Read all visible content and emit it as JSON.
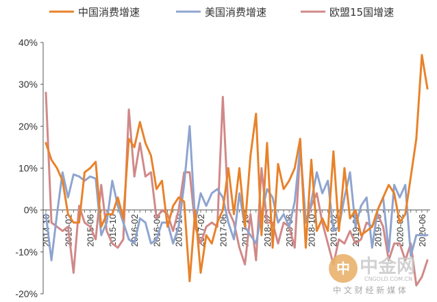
{
  "chart_data": {
    "type": "line",
    "title": "",
    "xlabel": "",
    "ylabel": "",
    "ylim": [
      -20,
      40
    ],
    "y_ticks": [
      "40%",
      "30%",
      "20%",
      "10%",
      "0%",
      "-10%",
      "-20%"
    ],
    "y_tick_values": [
      40,
      30,
      20,
      10,
      0,
      -10,
      -20
    ],
    "x": [
      "2014-10",
      "2014-11",
      "2014-12",
      "2015-01",
      "2015-02",
      "2015-03",
      "2015-04",
      "2015-05",
      "2015-06",
      "2015-07",
      "2015-08",
      "2015-09",
      "2015-10",
      "2015-11",
      "2015-12",
      "2016-01",
      "2016-02",
      "2016-03",
      "2016-04",
      "2016-05",
      "2016-06",
      "2016-07",
      "2016-08",
      "2016-09",
      "2016-10",
      "2016-11",
      "2016-12",
      "2017-01",
      "2017-02",
      "2017-03",
      "2017-04",
      "2017-05",
      "2017-06",
      "2017-07",
      "2017-08",
      "2017-09",
      "2017-10",
      "2017-11",
      "2017-12",
      "2018-01",
      "2018-02",
      "2018-03",
      "2018-04",
      "2018-05",
      "2018-06",
      "2018-07",
      "2018-08",
      "2018-09",
      "2018-10",
      "2018-11",
      "2018-12",
      "2019-01",
      "2019-02",
      "2019-03",
      "2019-04",
      "2019-05",
      "2019-06",
      "2019-07",
      "2019-08",
      "2019-09",
      "2019-10",
      "2019-11",
      "2019-12",
      "2020-01",
      "2020-02",
      "2020-03",
      "2020-04",
      "2020-05",
      "2020-06",
      "2020-07"
    ],
    "x_tick_labels": [
      "2014-10",
      "2015-02",
      "2015-06",
      "2015-10",
      "2016-02",
      "2016-06",
      "2016-10",
      "2017-02",
      "2017-06",
      "2017-10",
      "2018-02",
      "2018-06",
      "2018-10",
      "2019-02",
      "2019-06",
      "2019-10",
      "2020-02",
      "2020-06"
    ],
    "x_tick_indices": [
      0,
      4,
      8,
      12,
      16,
      20,
      24,
      28,
      32,
      36,
      40,
      44,
      48,
      52,
      56,
      60,
      64,
      68
    ],
    "legend_position": "top",
    "grid": false,
    "series": [
      {
        "name": "中国消费增速",
        "color": "#e8822a",
        "values": [
          16,
          12,
          10,
          7,
          -1,
          -3,
          -3,
          9,
          10,
          11.5,
          -4,
          -1,
          -1,
          3,
          -2,
          17,
          15,
          21,
          16,
          13,
          5,
          7,
          -4,
          1,
          3,
          2,
          -17,
          0,
          -15,
          -6,
          -8,
          -3,
          0,
          10,
          -1,
          10,
          -4,
          13,
          23,
          -6,
          16,
          -9,
          11,
          5,
          7,
          10,
          17,
          -9,
          12,
          -5,
          -2,
          -5,
          14,
          -5,
          10,
          -2,
          0,
          -6,
          -5,
          -4,
          0,
          3,
          6,
          4,
          -3,
          -1,
          8,
          17,
          37,
          29
        ]
      },
      {
        "name": "美国消费增速",
        "color": "#8ea4cf",
        "values": [
          -1,
          -12,
          -1,
          9,
          3,
          8.5,
          8,
          7,
          8,
          7.5,
          -6,
          -3,
          7,
          1,
          -3,
          -7,
          -8,
          -2,
          -3,
          -8,
          -7,
          -3,
          -3,
          -8,
          -4,
          6,
          20,
          -3,
          4,
          1,
          4,
          5,
          3,
          -3,
          -7,
          4,
          -4,
          -6,
          -8,
          -1,
          5,
          3,
          -3,
          -1,
          -4,
          2,
          15,
          -3,
          2,
          9,
          4,
          7,
          -5,
          -4,
          3,
          9,
          -4,
          1,
          3,
          -9,
          0,
          3,
          -10,
          6,
          3,
          6,
          -11,
          -6,
          -6,
          -6
        ]
      },
      {
        "name": "欧盟15国增速",
        "color": "#d18888",
        "values": [
          28,
          -3,
          -4,
          -5,
          -4,
          -15,
          1,
          -3,
          -4,
          -7,
          6,
          -5,
          -8,
          -9,
          -7,
          24,
          8,
          16,
          8,
          9,
          -2,
          0,
          -1,
          -5,
          0,
          9,
          9,
          -4,
          -8,
          -4,
          -3,
          -4,
          27,
          0,
          -3,
          -9,
          -13,
          -1,
          -12,
          10,
          -3,
          -3,
          -8,
          -3,
          -4,
          -9,
          15,
          -3,
          1,
          4,
          -3,
          -8,
          -13,
          -7,
          -8,
          -5,
          -8,
          -7,
          -3,
          -4,
          -1,
          -4,
          -12,
          -8,
          -8,
          -12,
          -8,
          -18,
          -16,
          -12
        ]
      }
    ]
  },
  "watermark": {
    "logo_char": "中",
    "brand": "中金网",
    "url": "CNGOLD.COM.CN",
    "tagline": "中 文 财 经 新 媒 体"
  }
}
